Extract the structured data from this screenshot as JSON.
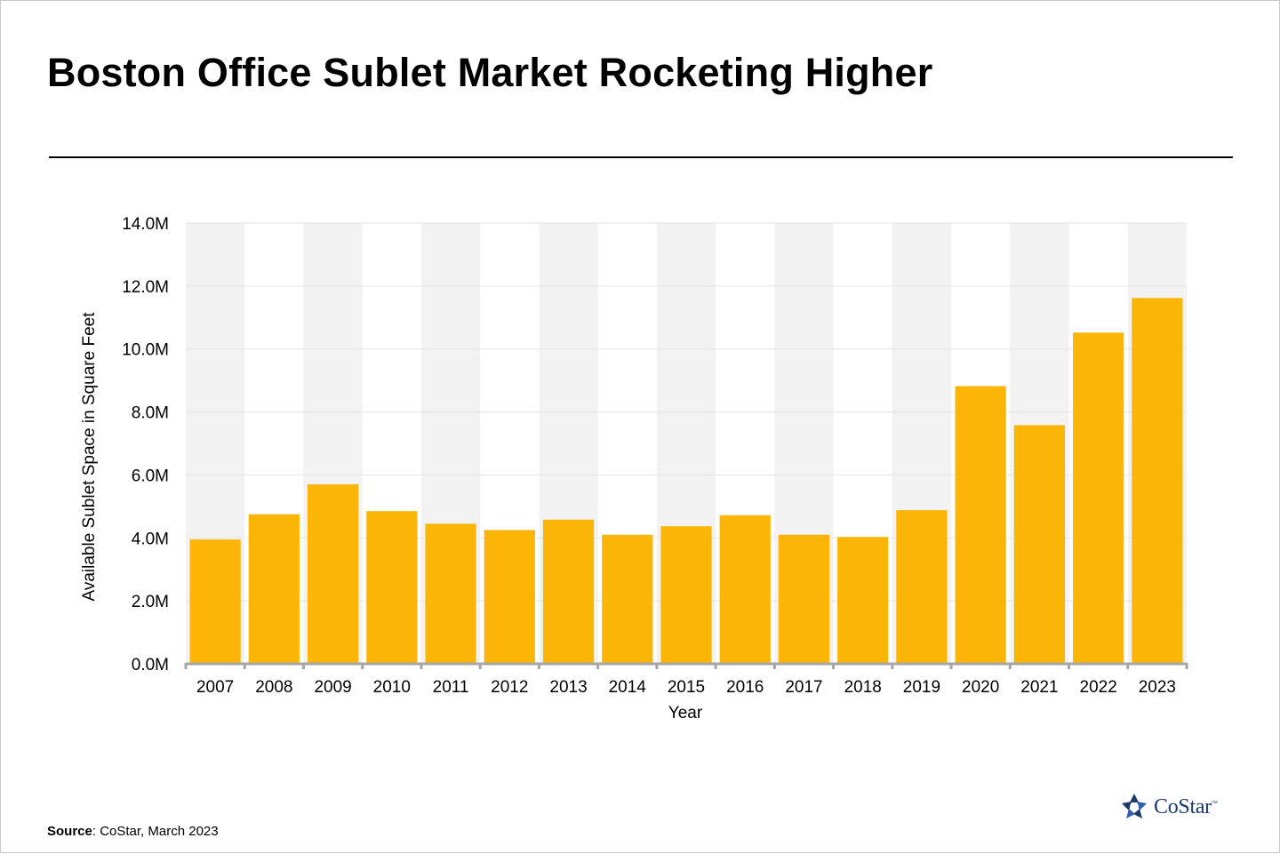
{
  "title": "Boston Office Sublet Market Rocketing Higher",
  "source": {
    "label": "Source",
    "text": ": CoStar, March 2023"
  },
  "logo": {
    "icon": "costar-star-icon",
    "text": "CoStar",
    "mark": "™"
  },
  "chart_data": {
    "type": "bar",
    "categories": [
      "2007",
      "2008",
      "2009",
      "2010",
      "2011",
      "2012",
      "2013",
      "2014",
      "2015",
      "2016",
      "2017",
      "2018",
      "2019",
      "2020",
      "2021",
      "2022",
      "2023"
    ],
    "values": [
      3.95,
      4.75,
      5.7,
      4.85,
      4.45,
      4.25,
      4.58,
      4.1,
      4.37,
      4.72,
      4.1,
      4.03,
      4.88,
      8.82,
      7.58,
      10.52,
      11.62
    ],
    "value_unit": "M square feet",
    "ylim": [
      0,
      14
    ],
    "yticks": [
      {
        "value": 0,
        "label": "0.0M"
      },
      {
        "value": 2,
        "label": "2.0M"
      },
      {
        "value": 4,
        "label": "4.0M"
      },
      {
        "value": 6,
        "label": "6.0M"
      },
      {
        "value": 8,
        "label": "8.0M"
      },
      {
        "value": 10,
        "label": "10.0M"
      },
      {
        "value": 12,
        "label": "12.0M"
      },
      {
        "value": 14,
        "label": "14.0M"
      }
    ],
    "xlabel": "Year",
    "ylabel": "Available Sublet Space in Square Feet",
    "grid": true,
    "legend": "none",
    "colors": {
      "bar": "#FBB506",
      "band": "#F2F2F2",
      "gridline": "#E3E3E3",
      "axis": "#A6A6A6"
    }
  }
}
